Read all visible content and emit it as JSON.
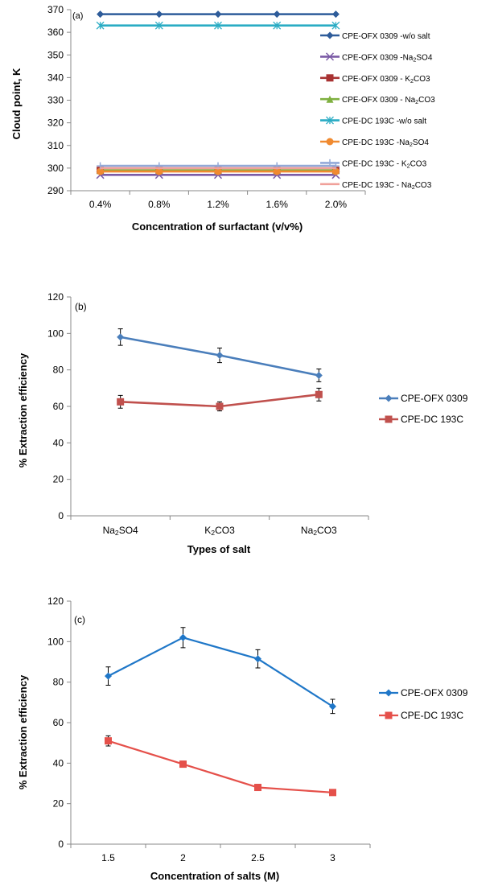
{
  "chart_data": [
    {
      "type": "line",
      "panel_label": "(a)",
      "xlabel": "Concentration of surfactant (v/v%)",
      "ylabel": "Cloud point, K",
      "categories": [
        "0.4%",
        "0.8%",
        "1.2%",
        "1.6%",
        "2.0%"
      ],
      "ylim": [
        290,
        370
      ],
      "yticks": [
        "290",
        "300",
        "310",
        "320",
        "330",
        "340",
        "350",
        "360",
        "370"
      ],
      "grid": false,
      "legend_position": "right",
      "series": [
        {
          "name": "CPE-OFX 0309 -w/o salt",
          "sub": "",
          "post": "",
          "values": [
            368,
            368,
            368,
            368,
            368
          ],
          "color": "#2E5C9A",
          "marker": "diamond"
        },
        {
          "name": "CPE-OFX 0309 -Na",
          "sub": "2",
          "post": "SO4",
          "values": [
            297,
            297,
            297,
            297,
            297
          ],
          "color": "#7B5BA6",
          "marker": "x"
        },
        {
          "name": "CPE-OFX 0309 - K",
          "sub": "2",
          "post": "CO3",
          "values": [
            299,
            299,
            299,
            299,
            299
          ],
          "color": "#A83232",
          "marker": "square"
        },
        {
          "name": "CPE-OFX 0309 - Na",
          "sub": "2",
          "post": "CO3",
          "values": [
            299,
            299,
            299,
            299,
            299
          ],
          "color": "#7FB040",
          "marker": "triangle"
        },
        {
          "name": "CPE-DC 193C -w/o salt",
          "sub": "",
          "post": "",
          "values": [
            363,
            363,
            363,
            363,
            363
          ],
          "color": "#2AACC4",
          "marker": "star"
        },
        {
          "name": "CPE-DC 193C -Na",
          "sub": "2",
          "post": "SO4",
          "values": [
            298.5,
            298.5,
            298.5,
            298.5,
            298.5
          ],
          "color": "#F08A30",
          "marker": "circle"
        },
        {
          "name": "CPE-DC 193C - K",
          "sub": "2",
          "post": "CO3",
          "values": [
            301,
            301,
            301,
            301,
            301
          ],
          "color": "#93A9D8",
          "marker": "plus"
        },
        {
          "name": "CPE-DC 193C - Na",
          "sub": "2",
          "post": "CO3",
          "values": [
            300,
            300,
            300,
            300,
            300
          ],
          "color": "#F0A09A",
          "marker": "none"
        }
      ]
    },
    {
      "type": "line",
      "panel_label": "(b)",
      "xlabel": "Types of salt",
      "ylabel": "% Extraction efficiency",
      "categories": [
        {
          "pre": "Na",
          "sub": "2",
          "post": "SO4"
        },
        {
          "pre": "K",
          "sub": "2",
          "post": "CO3"
        },
        {
          "pre": "Na",
          "sub": "2",
          "post": "CO3"
        }
      ],
      "ylim": [
        0,
        120
      ],
      "yticks": [
        "0",
        "20",
        "40",
        "60",
        "80",
        "100",
        "120"
      ],
      "grid": false,
      "legend_position": "right",
      "series": [
        {
          "name": "CPE-OFX 0309",
          "values": [
            98,
            88,
            77
          ],
          "errors": [
            4.5,
            4,
            3.5
          ],
          "color": "#4A7EBB",
          "marker": "diamond"
        },
        {
          "name": "CPE-DC 193C",
          "values": [
            62.5,
            60,
            66.5
          ],
          "errors": [
            3.5,
            2.5,
            3.5
          ],
          "color": "#C0504D",
          "marker": "square"
        }
      ]
    },
    {
      "type": "line",
      "panel_label": "(c)",
      "xlabel": "Concentration of salts (M)",
      "ylabel": "% Extraction efficiency",
      "categories": [
        "1.5",
        "2",
        "2.5",
        "3"
      ],
      "ylim": [
        0,
        120
      ],
      "yticks": [
        "0",
        "20",
        "40",
        "60",
        "80",
        "100",
        "120"
      ],
      "grid": false,
      "legend_position": "right",
      "series": [
        {
          "name": "CPE-OFX 0309",
          "values": [
            83,
            102,
            91.5,
            68
          ],
          "errors": [
            4.5,
            5,
            4.5,
            3.5
          ],
          "color": "#1F77C8",
          "marker": "diamond"
        },
        {
          "name": "CPE-DC 193C",
          "values": [
            51,
            39.5,
            28,
            25.5
          ],
          "errors": [
            2.5,
            1.5,
            1.5,
            0.5
          ],
          "color": "#E5504A",
          "marker": "square"
        }
      ]
    }
  ]
}
